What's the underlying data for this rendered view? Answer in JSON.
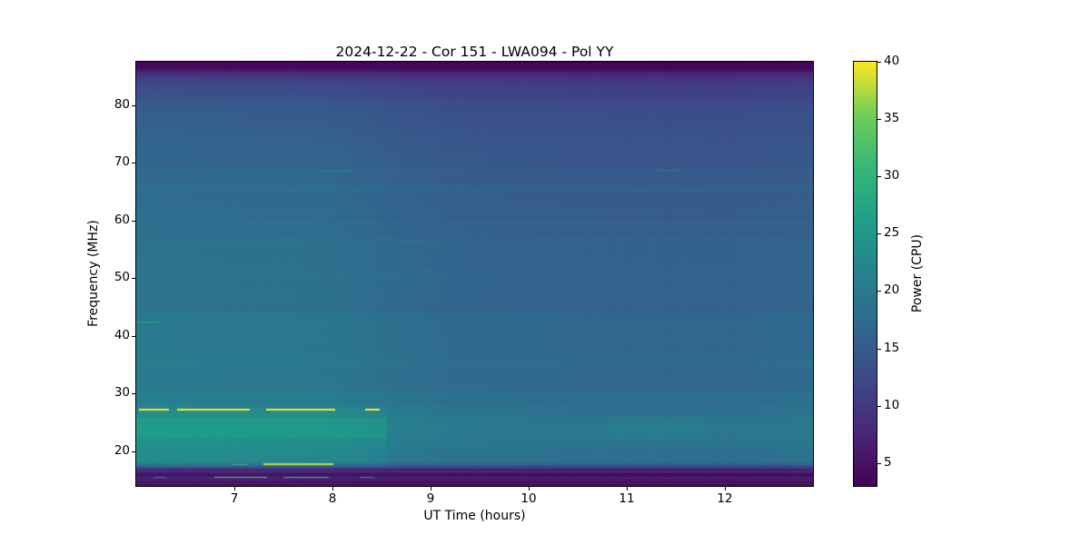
{
  "chart_data": {
    "type": "heatmap",
    "title": "2024-12-22 - Cor 151 - LWA094 - Pol YY",
    "xlabel": "UT Time (hours)",
    "ylabel": "Frequency (MHz)",
    "colorbar_label": "Power (CPU)",
    "x_range": [
      6.0,
      12.9
    ],
    "y_range": [
      14.0,
      87.5
    ],
    "x_ticks": [
      7,
      8,
      9,
      10,
      11,
      12
    ],
    "y_ticks": [
      20,
      30,
      40,
      50,
      60,
      70,
      80
    ],
    "colorbar_ticks": [
      5,
      10,
      15,
      20,
      25,
      30,
      35,
      40
    ],
    "value_range": [
      3,
      40
    ],
    "colormap": "viridis",
    "colormap_stops": [
      [
        0.0,
        "#440154"
      ],
      [
        0.125,
        "#482878"
      ],
      [
        0.25,
        "#3e4989"
      ],
      [
        0.375,
        "#31688e"
      ],
      [
        0.5,
        "#26828e"
      ],
      [
        0.625,
        "#1f9e89"
      ],
      [
        0.75,
        "#35b779"
      ],
      [
        0.875,
        "#6ece58"
      ],
      [
        1.0,
        "#fde725"
      ]
    ],
    "background_field": {
      "freq_profile": [
        [
          14.0,
          3.6
        ],
        [
          14.6,
          5.2
        ],
        [
          15.0,
          5.8
        ],
        [
          15.6,
          5.2
        ],
        [
          16.2,
          6.0
        ],
        [
          16.8,
          8.0
        ],
        [
          17.3,
          14.0
        ],
        [
          17.8,
          18.5
        ],
        [
          18.5,
          20.6
        ],
        [
          20.0,
          21.2
        ],
        [
          22.0,
          22.2
        ],
        [
          24.0,
          22.6
        ],
        [
          26.0,
          22.0
        ],
        [
          27.5,
          21.0
        ],
        [
          29.0,
          20.2
        ],
        [
          31.0,
          19.8
        ],
        [
          34.0,
          19.6
        ],
        [
          38.0,
          19.4
        ],
        [
          42.0,
          19.2
        ],
        [
          43.8,
          19.4
        ],
        [
          44.3,
          18.8
        ],
        [
          48.0,
          18.6
        ],
        [
          52.0,
          18.4
        ],
        [
          56.0,
          18.1
        ],
        [
          60.0,
          17.7
        ],
        [
          64.0,
          17.3
        ],
        [
          68.0,
          16.9
        ],
        [
          72.0,
          16.3
        ],
        [
          76.0,
          15.6
        ],
        [
          80.0,
          14.4
        ],
        [
          82.0,
          13.4
        ],
        [
          84.0,
          12.0
        ],
        [
          85.2,
          9.0
        ],
        [
          86.0,
          5.5
        ],
        [
          86.6,
          4.0
        ],
        [
          87.5,
          3.2
        ]
      ],
      "time_profile": [
        [
          6.0,
          1.03
        ],
        [
          6.6,
          1.02
        ],
        [
          7.2,
          1.01
        ],
        [
          8.0,
          1.0
        ],
        [
          8.5,
          0.95
        ],
        [
          9.2,
          0.9
        ],
        [
          10.0,
          0.88
        ],
        [
          10.8,
          0.87
        ],
        [
          11.6,
          0.865
        ],
        [
          12.3,
          0.87
        ],
        [
          12.9,
          0.89
        ]
      ],
      "stripe_seed": 7,
      "stripe_amplitudes": {
        "high": 0.55,
        "mid": 0.4,
        "low": 0.45,
        "cutoff": 0.9
      },
      "column_noise": 0.12
    },
    "patches": [
      {
        "f0": 17.5,
        "f1": 27.5,
        "t0": 6.0,
        "t1": 8.55,
        "delta": 1.6
      },
      {
        "f0": 22.5,
        "f1": 25.8,
        "t0": 6.0,
        "t1": 8.55,
        "delta": 1.2
      },
      {
        "f0": 22.0,
        "f1": 26.0,
        "t0": 10.8,
        "t1": 11.8,
        "delta": 0.9
      }
    ],
    "rfi_lines": [
      {
        "f": 27.2,
        "t0": 6.03,
        "t1": 6.32,
        "value": 40,
        "h": 2
      },
      {
        "f": 27.2,
        "t0": 6.42,
        "t1": 7.15,
        "value": 40,
        "h": 2
      },
      {
        "f": 27.2,
        "t0": 7.32,
        "t1": 8.02,
        "value": 40,
        "h": 2
      },
      {
        "f": 27.2,
        "t0": 8.33,
        "t1": 8.47,
        "value": 40,
        "h": 2
      },
      {
        "f": 17.85,
        "t0": 7.3,
        "t1": 8.0,
        "value": 38,
        "h": 2
      },
      {
        "f": 17.85,
        "t0": 6.98,
        "t1": 7.12,
        "value": 30,
        "h": 1
      },
      {
        "f": 15.5,
        "t0": 6.8,
        "t1": 7.32,
        "value": 33,
        "h": 1
      },
      {
        "f": 15.5,
        "t0": 7.5,
        "t1": 7.95,
        "value": 30,
        "h": 1
      },
      {
        "f": 15.55,
        "t0": 6.18,
        "t1": 6.3,
        "value": 24,
        "h": 1
      },
      {
        "f": 15.5,
        "t0": 8.28,
        "t1": 8.42,
        "value": 22,
        "h": 1
      },
      {
        "f": 42.3,
        "t0": 6.0,
        "t1": 6.22,
        "value": 25,
        "h": 2
      },
      {
        "f": 68.6,
        "t0": 7.85,
        "t1": 8.2,
        "value": 21,
        "h": 1
      },
      {
        "f": 68.8,
        "t0": 11.3,
        "t1": 11.55,
        "value": 20,
        "h": 1
      },
      {
        "f": 16.55,
        "t0": 6.0,
        "t1": 12.9,
        "value": 10,
        "h": 1
      },
      {
        "f": 15.35,
        "t0": 6.0,
        "t1": 12.9,
        "value": 9,
        "h": 1
      },
      {
        "f": 14.55,
        "t0": 6.0,
        "t1": 12.9,
        "value": 7,
        "h": 1
      },
      {
        "f": 85.6,
        "t0": 6.0,
        "t1": 12.9,
        "value": 9,
        "h": 1
      }
    ]
  }
}
